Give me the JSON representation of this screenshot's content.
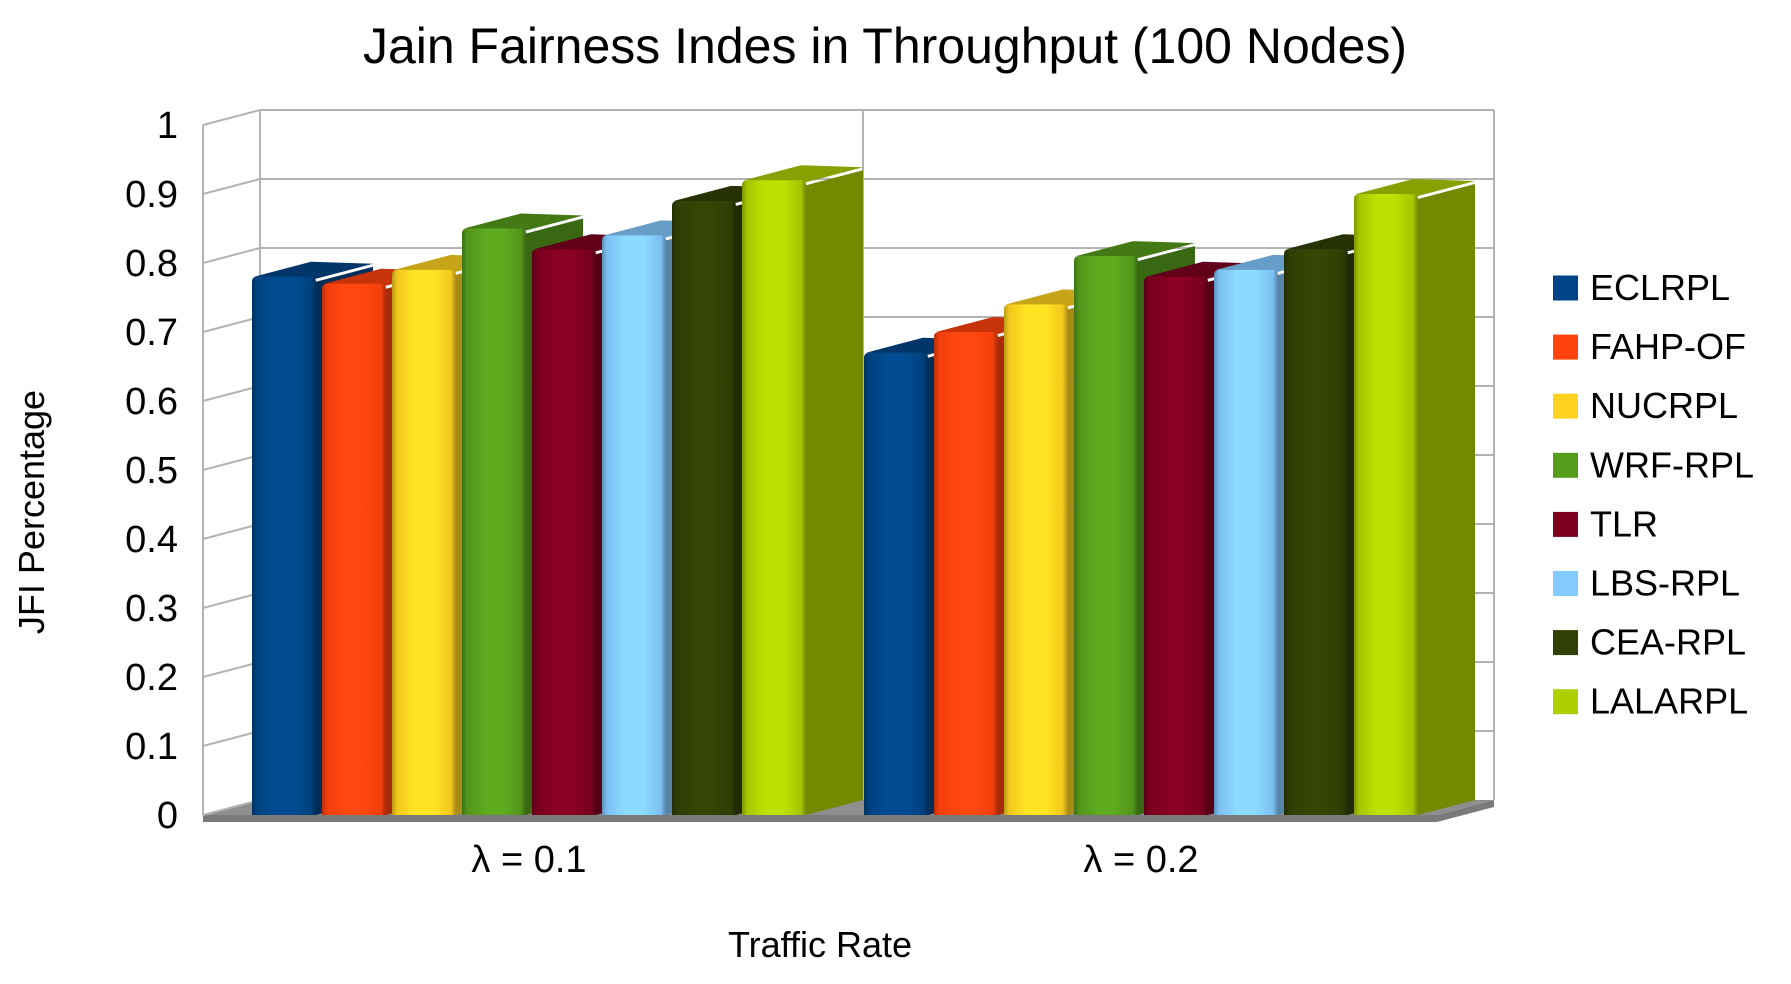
{
  "title": "Jain Fairness Indes in Throughput (100 Nodes)",
  "chart_data": {
    "type": "bar",
    "projection": "3d",
    "title": "Jain Fairness Indes in Throughput (100 Nodes)",
    "xlabel": "Traffic Rate",
    "ylabel": "JFI Percentage",
    "categories": [
      "λ = 0.1",
      "λ = 0.2"
    ],
    "series": [
      {
        "name": "ECLRPL",
        "color": "#004586",
        "values": [
          0.78,
          0.67
        ]
      },
      {
        "name": "FAHP-OF",
        "color": "#FF420E",
        "values": [
          0.77,
          0.7
        ]
      },
      {
        "name": "NUCRPL",
        "color": "#FFD320",
        "values": [
          0.79,
          0.74
        ]
      },
      {
        "name": "WRF-RPL",
        "color": "#579D1C",
        "values": [
          0.85,
          0.81
        ]
      },
      {
        "name": "TLR",
        "color": "#7E0021",
        "values": [
          0.82,
          0.78
        ]
      },
      {
        "name": "LBS-RPL",
        "color": "#83CAFF",
        "values": [
          0.84,
          0.79
        ]
      },
      {
        "name": "CEA-RPL",
        "color": "#314004",
        "values": [
          0.89,
          0.82
        ]
      },
      {
        "name": "LALARPL",
        "color": "#AECF00",
        "values": [
          0.92,
          0.9
        ]
      }
    ],
    "ylim": [
      0,
      1
    ],
    "ytick_step": 0.1,
    "yticks": [
      "0",
      "0.1",
      "0.2",
      "0.3",
      "0.4",
      "0.5",
      "0.6",
      "0.7",
      "0.8",
      "0.9",
      "1"
    ],
    "grid": "horizontal",
    "legend_position": "right"
  },
  "colors": {
    "background": "#ffffff",
    "gridline": "#b3b3b3",
    "floor": "#8e8e8e",
    "floor_edge": "#7a7a7a",
    "text": "#000000"
  }
}
